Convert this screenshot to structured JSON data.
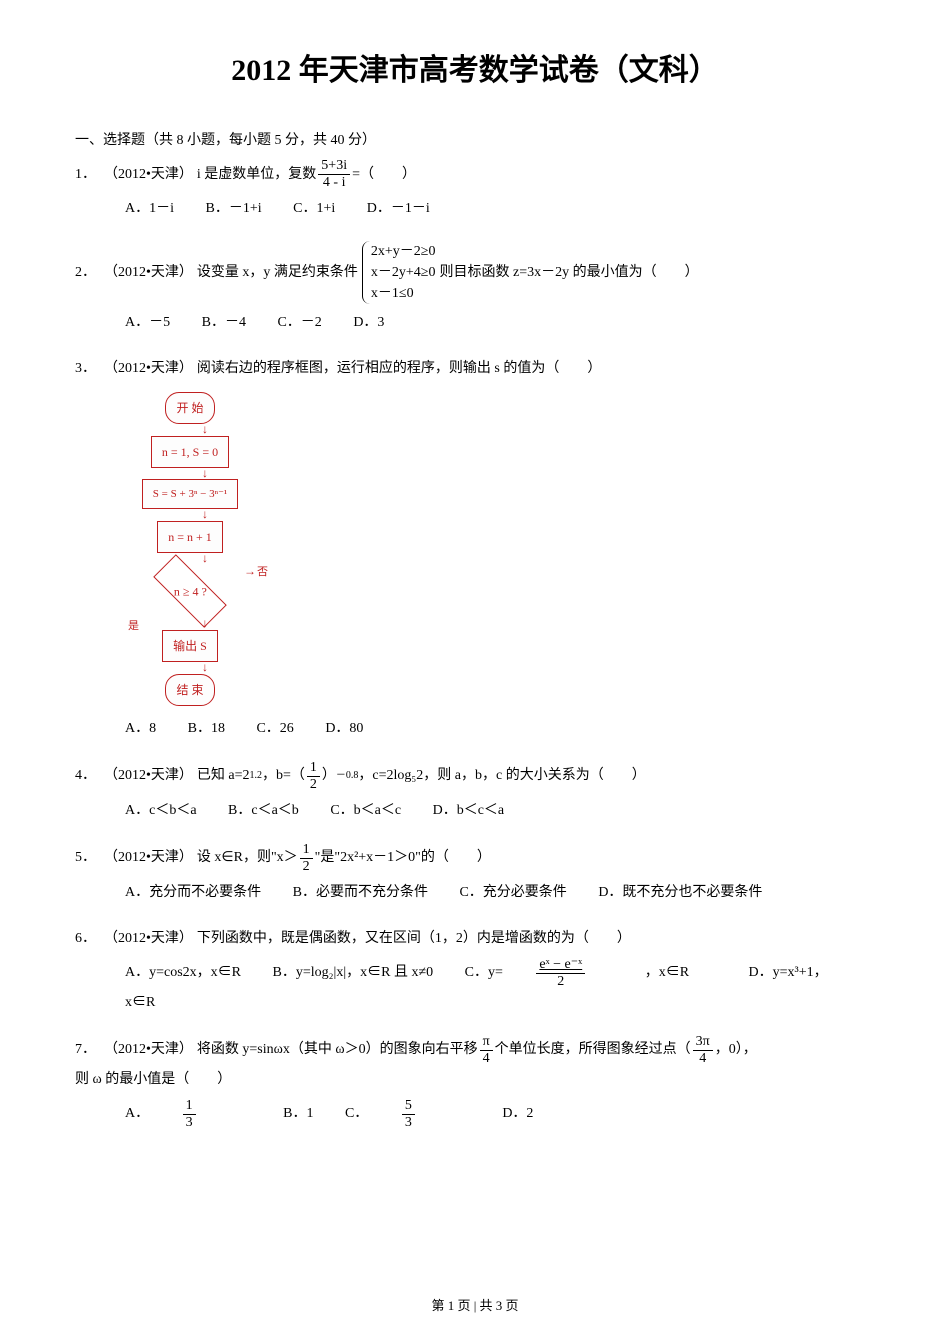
{
  "title": "2012 年天津市高考数学试卷（文科）",
  "section1": "一、选择题（共 8 小题，每小题 5 分，共 40 分）",
  "q1": {
    "num": "1．",
    "source": "（2012•天津）",
    "text_a": "i 是虚数单位，复数",
    "frac_num": "5+3i",
    "frac_den": "4 - i",
    "text_b": "=（　　）",
    "choices": {
      "A": "A．1－i",
      "B": "B．－1+i",
      "C": "C．1+i",
      "D": "D．－1－i"
    }
  },
  "q2": {
    "num": "2．",
    "source": "（2012•天津）",
    "text_a": "设变量 x，y 满足约束条件",
    "constraints": {
      "c1": "2x+y－2≥0",
      "c2": "x－2y+4≥0",
      "c3": "x－1≤0"
    },
    "text_b": " 则目标函数 z=3x－2y 的最小值为（　　）",
    "choices": {
      "A": "A．－5",
      "B": "B．－4",
      "C": "C．－2",
      "D": "D．3"
    }
  },
  "q3": {
    "num": "3．",
    "source": "（2012•天津）",
    "text": "阅读右边的程序框图，运行相应的程序，则输出 s 的值为（　　）",
    "flowchart": {
      "start": "开  始",
      "init": "n = 1, S = 0",
      "step": "S = S + 3ⁿ − 3ⁿ⁻¹",
      "inc": "n = n + 1",
      "cond": "n ≥ 4 ?",
      "yes": "是",
      "no": "否",
      "output": "输出 S",
      "end": "结  束"
    },
    "choices": {
      "A": "A．8",
      "B": "B．18",
      "C": "C．26",
      "D": "D．80"
    }
  },
  "q4": {
    "num": "4．",
    "source": "（2012•天津）",
    "text_a": "已知 a=2",
    "exp1": "1.2",
    "text_b": "，b=（",
    "frac_num": "1",
    "frac_den": "2",
    "text_c": "）",
    "exp2": "－0.8",
    "text_d": "，c=2log₅2，则 a，b，c 的大小关系为（　　）",
    "choices": {
      "A": "A．c＜b＜a",
      "B": "B．c＜a＜b",
      "C": "C．b＜a＜c",
      "D": "D．b＜c＜a"
    }
  },
  "q5": {
    "num": "5．",
    "source": "（2012•天津）",
    "text_a": "设 x∈R，则\"x＞",
    "frac_num": "1",
    "frac_den": "2",
    "text_b": "\"是\"2x²+x－1＞0\"的（　　）",
    "choices": {
      "A": "A．充分而不必要条件",
      "B": "B．必要而不充分条件",
      "C": "C．充分必要条件",
      "D": "D．既不充分也不必要条件"
    }
  },
  "q6": {
    "num": "6．",
    "source": "（2012•天津）",
    "text": "下列函数中，既是偶函数，又在区间（1，2）内是增函数的为（　　）",
    "choices": {
      "A": "A．y=cos2x，x∈R",
      "B": "B．y=log₂|x|，x∈R 且 x≠0",
      "C_a": "C．y=",
      "C_frac_num": "eˣ − e⁻ˣ",
      "C_frac_den": "2",
      "C_b": "，x∈R",
      "D": "D．y=x³+1，x∈R"
    }
  },
  "q7": {
    "num": "7．",
    "source": "（2012•天津）",
    "text_a": "将函数 y=sinωx（其中 ω＞0）的图象向右平移",
    "f1_num": "π",
    "f1_den": "4",
    "text_b": "个单位长度，所得图象经过点（",
    "f2_num": "3π",
    "f2_den": "4",
    "text_c": "，0），",
    "text_d": "则 ω 的最小值是（　　）",
    "choices": {
      "A_a": "A．",
      "A_num": "1",
      "A_den": "3",
      "B": "B．1",
      "C_a": "C．",
      "C_num": "5",
      "C_den": "3",
      "D": "D．2"
    }
  },
  "footer": "第 1 页 | 共 3 页"
}
